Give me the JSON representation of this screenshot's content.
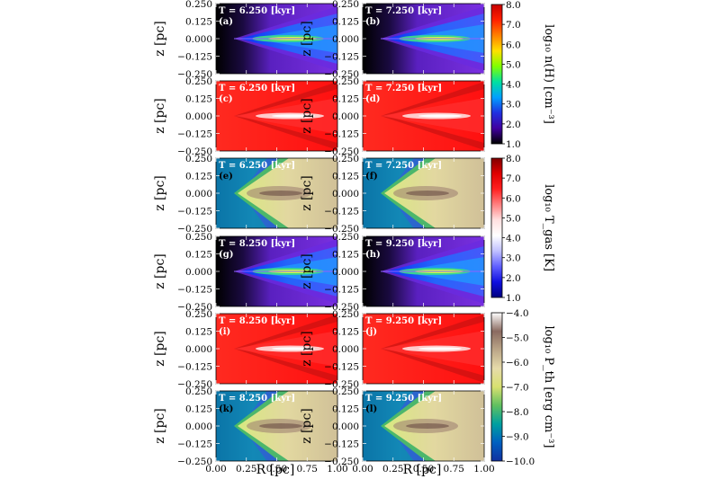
{
  "figure": {
    "x_axis_label": "R [pc]",
    "y_axis_label": "z [pc]",
    "x_ticks": [
      "0.00",
      "0.25",
      "0.50",
      "0.75",
      "1.00"
    ],
    "y_ticks": [
      "0.250",
      "0.125",
      "0.000",
      "−0.125",
      "−0.250"
    ],
    "panels": [
      {
        "letter": "(a)",
        "time": "T =  6.250 [kyr]",
        "quantity": "density",
        "letter_color": "#ffffff"
      },
      {
        "letter": "(b)",
        "time": "T =  7.250 [kyr]",
        "quantity": "density",
        "letter_color": "#ffffff"
      },
      {
        "letter": "(c)",
        "time": "T =  6.250 [kyr]",
        "quantity": "temperature",
        "letter_color": "#ffffff"
      },
      {
        "letter": "(d)",
        "time": "T =  7.250 [kyr]",
        "quantity": "temperature",
        "letter_color": "#ffffff"
      },
      {
        "letter": "(e)",
        "time": "T =  6.250 [kyr]",
        "quantity": "pressure",
        "letter_color": "#000000"
      },
      {
        "letter": "(f)",
        "time": "T =  7.250 [kyr]",
        "quantity": "pressure",
        "letter_color": "#000000"
      },
      {
        "letter": "(g)",
        "time": "T =  8.250 [kyr]",
        "quantity": "density",
        "letter_color": "#ffffff"
      },
      {
        "letter": "(h)",
        "time": "T =  9.250 [kyr]",
        "quantity": "density",
        "letter_color": "#ffffff"
      },
      {
        "letter": "(i)",
        "time": "T =  8.250 [kyr]",
        "quantity": "temperature",
        "letter_color": "#ffffff"
      },
      {
        "letter": "(j)",
        "time": "T =  9.250 [kyr]",
        "quantity": "temperature",
        "letter_color": "#ffffff"
      },
      {
        "letter": "(k)",
        "time": "T =  8.250 [kyr]",
        "quantity": "pressure",
        "letter_color": "#000000"
      },
      {
        "letter": "(l)",
        "time": "T =  9.250 [kyr]",
        "quantity": "pressure",
        "letter_color": "#000000"
      }
    ],
    "colorbars": [
      {
        "name": "density",
        "label": "log₁₀ n(H) [cm⁻³]",
        "ticks": [
          "8.0",
          "7.0",
          "6.0",
          "5.0",
          "4.0",
          "3.0",
          "2.0",
          "1.0"
        ],
        "colors": [
          "#c80000",
          "#ff2000",
          "#ff8000",
          "#ffe000",
          "#80ff00",
          "#00e0a0",
          "#00a0ff",
          "#2030e0",
          "#4000a0",
          "#000000"
        ]
      },
      {
        "name": "temperature",
        "label": "log₁₀ T_gas [K]",
        "ticks": [
          "8.0",
          "7.0",
          "6.0",
          "5.0",
          "4.0",
          "3.0",
          "2.0",
          "1.0"
        ],
        "colors": [
          "#800000",
          "#e00000",
          "#ff2020",
          "#ff8080",
          "#ffe0e0",
          "#ffffff",
          "#c0c0ff",
          "#6060ff",
          "#1010e0",
          "#000080"
        ]
      },
      {
        "name": "pressure",
        "label": "log₁₀ P_th [erg cm⁻³]",
        "ticks": [
          "−4.0",
          "−5.0",
          "−6.0",
          "−7.0",
          "−8.0",
          "−9.0",
          "−10.0"
        ],
        "colors": [
          "#ffffff",
          "#8a6a60",
          "#bba688",
          "#e6dbaa",
          "#d8e070",
          "#60c060",
          "#00a0a0",
          "#0060c0",
          "#1030a0"
        ]
      }
    ]
  }
}
